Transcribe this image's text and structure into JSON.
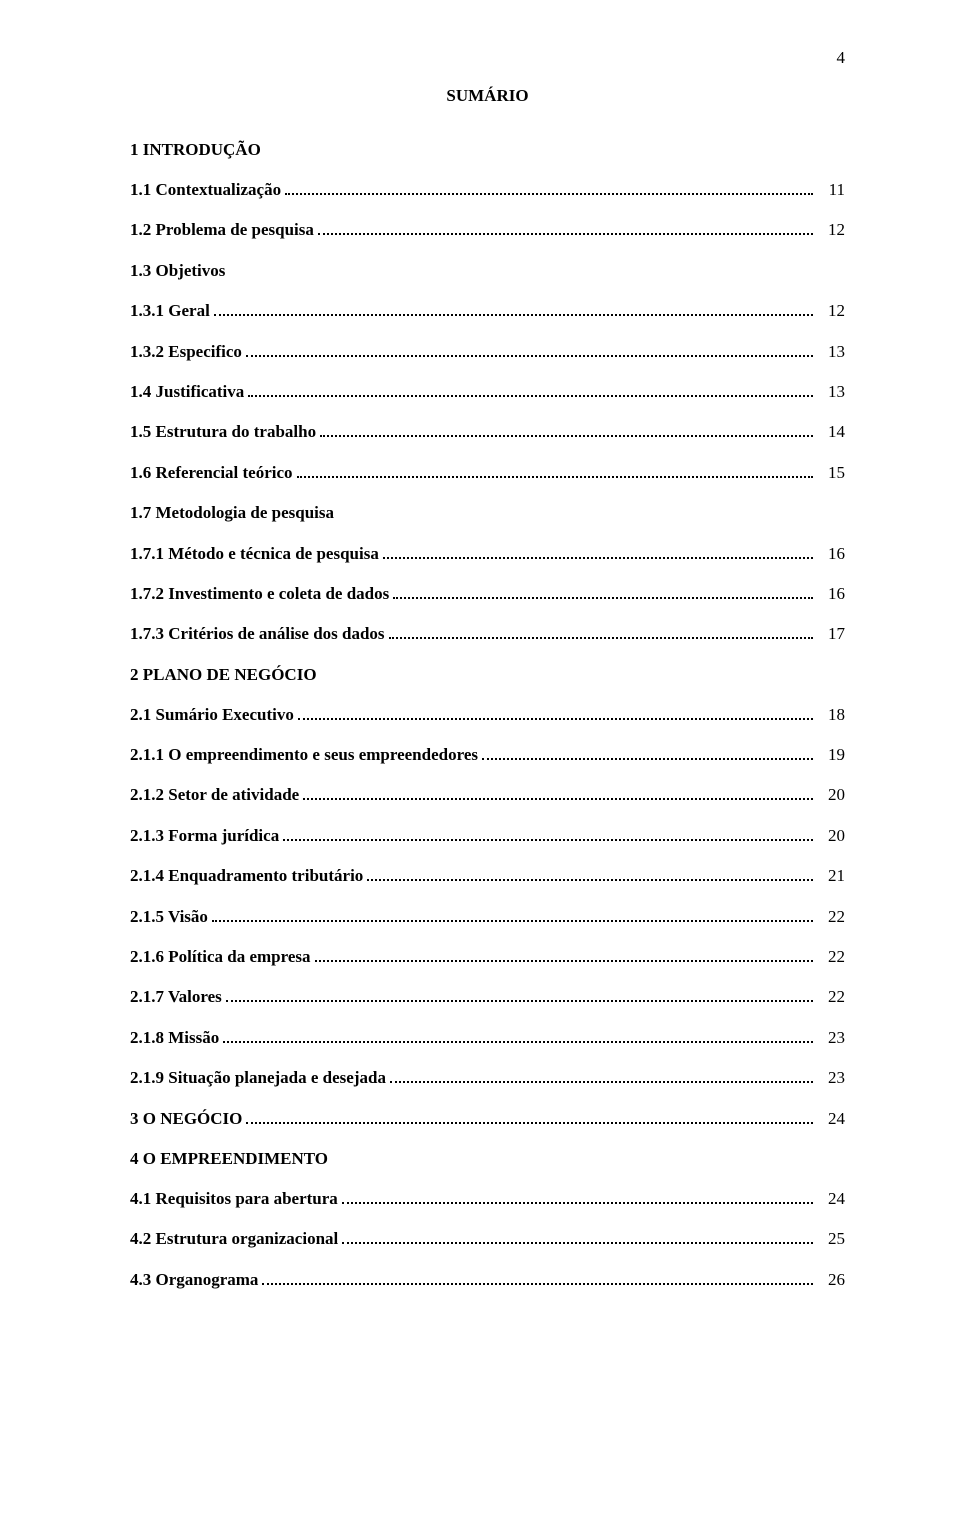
{
  "page_number": "4",
  "title": "SUMÁRIO",
  "entries": [
    {
      "type": "head",
      "label": "1 INTRODUÇÃO"
    },
    {
      "type": "row",
      "bold": true,
      "label": "1.1 Contextualização",
      "page": "11"
    },
    {
      "type": "row",
      "bold": true,
      "label": "1.2 Problema de pesquisa",
      "page": "12"
    },
    {
      "type": "row",
      "bold": true,
      "label": "1.3 Objetivos",
      "page": "",
      "nodots": true
    },
    {
      "type": "row",
      "bold": true,
      "label": "1.3.1 Geral",
      "page": "12"
    },
    {
      "type": "row",
      "bold": true,
      "label": "1.3.2 Especifico",
      "page": "13"
    },
    {
      "type": "row",
      "bold": true,
      "label": "1.4 Justificativa",
      "page": "13"
    },
    {
      "type": "row",
      "bold": true,
      "label": "1.5 Estrutura do trabalho",
      "page": "14"
    },
    {
      "type": "row",
      "bold": true,
      "label": "1.6 Referencial teórico",
      "page": "15"
    },
    {
      "type": "row",
      "bold": true,
      "label": "1.7 Metodologia de pesquisa",
      "page": "",
      "nodots": true
    },
    {
      "type": "row",
      "bold": true,
      "label": "1.7.1 Método e técnica de pesquisa",
      "page": "16"
    },
    {
      "type": "row",
      "bold": true,
      "label": "1.7.2 Investimento e coleta de dados",
      "page": "16"
    },
    {
      "type": "row",
      "bold": true,
      "label": "1.7.3 Critérios de análise dos dados",
      "page": "17"
    },
    {
      "type": "head",
      "label": "2 PLANO DE NEGÓCIO"
    },
    {
      "type": "row",
      "bold": true,
      "label": "2.1 Sumário Executivo",
      "page": "18"
    },
    {
      "type": "row",
      "bold": true,
      "label": "2.1.1 O empreendimento e seus empreendedores",
      "page": "19"
    },
    {
      "type": "row",
      "bold": true,
      "label": "2.1.2 Setor de atividade",
      "page": "20"
    },
    {
      "type": "row",
      "bold": true,
      "label": "2.1.3 Forma jurídica",
      "page": "20"
    },
    {
      "type": "row",
      "bold": true,
      "label": "2.1.4 Enquadramento tributário",
      "page": "21"
    },
    {
      "type": "row",
      "bold": true,
      "label": "2.1.5 Visão",
      "page": "22"
    },
    {
      "type": "row",
      "bold": true,
      "label": "2.1.6 Política da empresa",
      "page": "22"
    },
    {
      "type": "row",
      "bold": true,
      "label": "2.1.7 Valores",
      "page": "22"
    },
    {
      "type": "row",
      "bold": true,
      "label": "2.1.8 Missão",
      "page": "23"
    },
    {
      "type": "row",
      "bold": true,
      "label": "2.1.9 Situação planejada e desejada",
      "page": "23"
    },
    {
      "type": "row",
      "bold": true,
      "label": "3  O NEGÓCIO",
      "page": "24"
    },
    {
      "type": "head",
      "label": "4 O EMPREENDIMENTO"
    },
    {
      "type": "row",
      "bold": true,
      "label": "4.1 Requisitos para abertura",
      "page": "24"
    },
    {
      "type": "row",
      "bold": true,
      "label": "4.2 Estrutura organizacional",
      "page": "25"
    },
    {
      "type": "row",
      "bold": true,
      "label": "4.3 Organograma",
      "page": "26"
    }
  ]
}
